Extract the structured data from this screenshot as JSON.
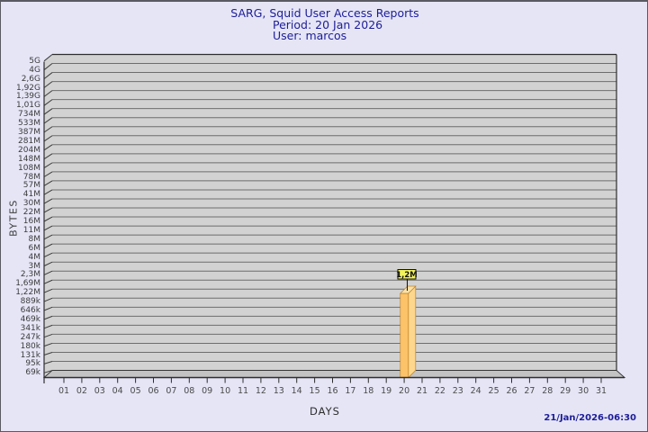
{
  "footer": {
    "timestamp": "21/Jan/2026-06:30"
  },
  "colors": {
    "background": "#e5e5f6",
    "plot_bg": "#d2d2d2",
    "floor": "#c3c3c3",
    "grid": "#6d6d6d",
    "frame": "#2e2e2e",
    "bar_front": "#fcc368",
    "bar_side": "#fdd78e",
    "bar_top": "#fbe2aa",
    "bar_outline": "#c08326",
    "value_box": "#f3f35c",
    "title_text": "#1d1d97"
  },
  "chart_data": {
    "type": "bar",
    "style": "3d-bar",
    "title": "SARG, Squid User Access Reports",
    "subtitle": [
      "Period: 20 Jan 2026",
      "User: marcos"
    ],
    "xlabel": "DAYS",
    "ylabel": "BYTES",
    "y_scale": "logarithmic",
    "grid": true,
    "x_tick_labels": [
      "01",
      "02",
      "03",
      "04",
      "05",
      "06",
      "07",
      "08",
      "09",
      "10",
      "11",
      "12",
      "13",
      "14",
      "15",
      "16",
      "17",
      "18",
      "19",
      "20",
      "21",
      "22",
      "23",
      "24",
      "25",
      "26",
      "27",
      "28",
      "29",
      "30",
      "31"
    ],
    "y_tick_labels": [
      "5G",
      "4G",
      "2,6G",
      "1,92G",
      "1,39G",
      "1,01G",
      "734M",
      "533M",
      "387M",
      "281M",
      "204M",
      "148M",
      "108M",
      "78M",
      "57M",
      "41M",
      "30M",
      "22M",
      "16M",
      "11M",
      "8M",
      "6M",
      "4M",
      "3M",
      "2,3M",
      "1,69M",
      "1,22M",
      "889k",
      "646k",
      "469k",
      "341k",
      "247k",
      "180k",
      "131k",
      "95k",
      "69k"
    ],
    "series": [
      {
        "name": "marcos",
        "points": [
          {
            "day": "20",
            "label": "1,2M",
            "approx_bytes": 1200000
          }
        ]
      }
    ]
  }
}
